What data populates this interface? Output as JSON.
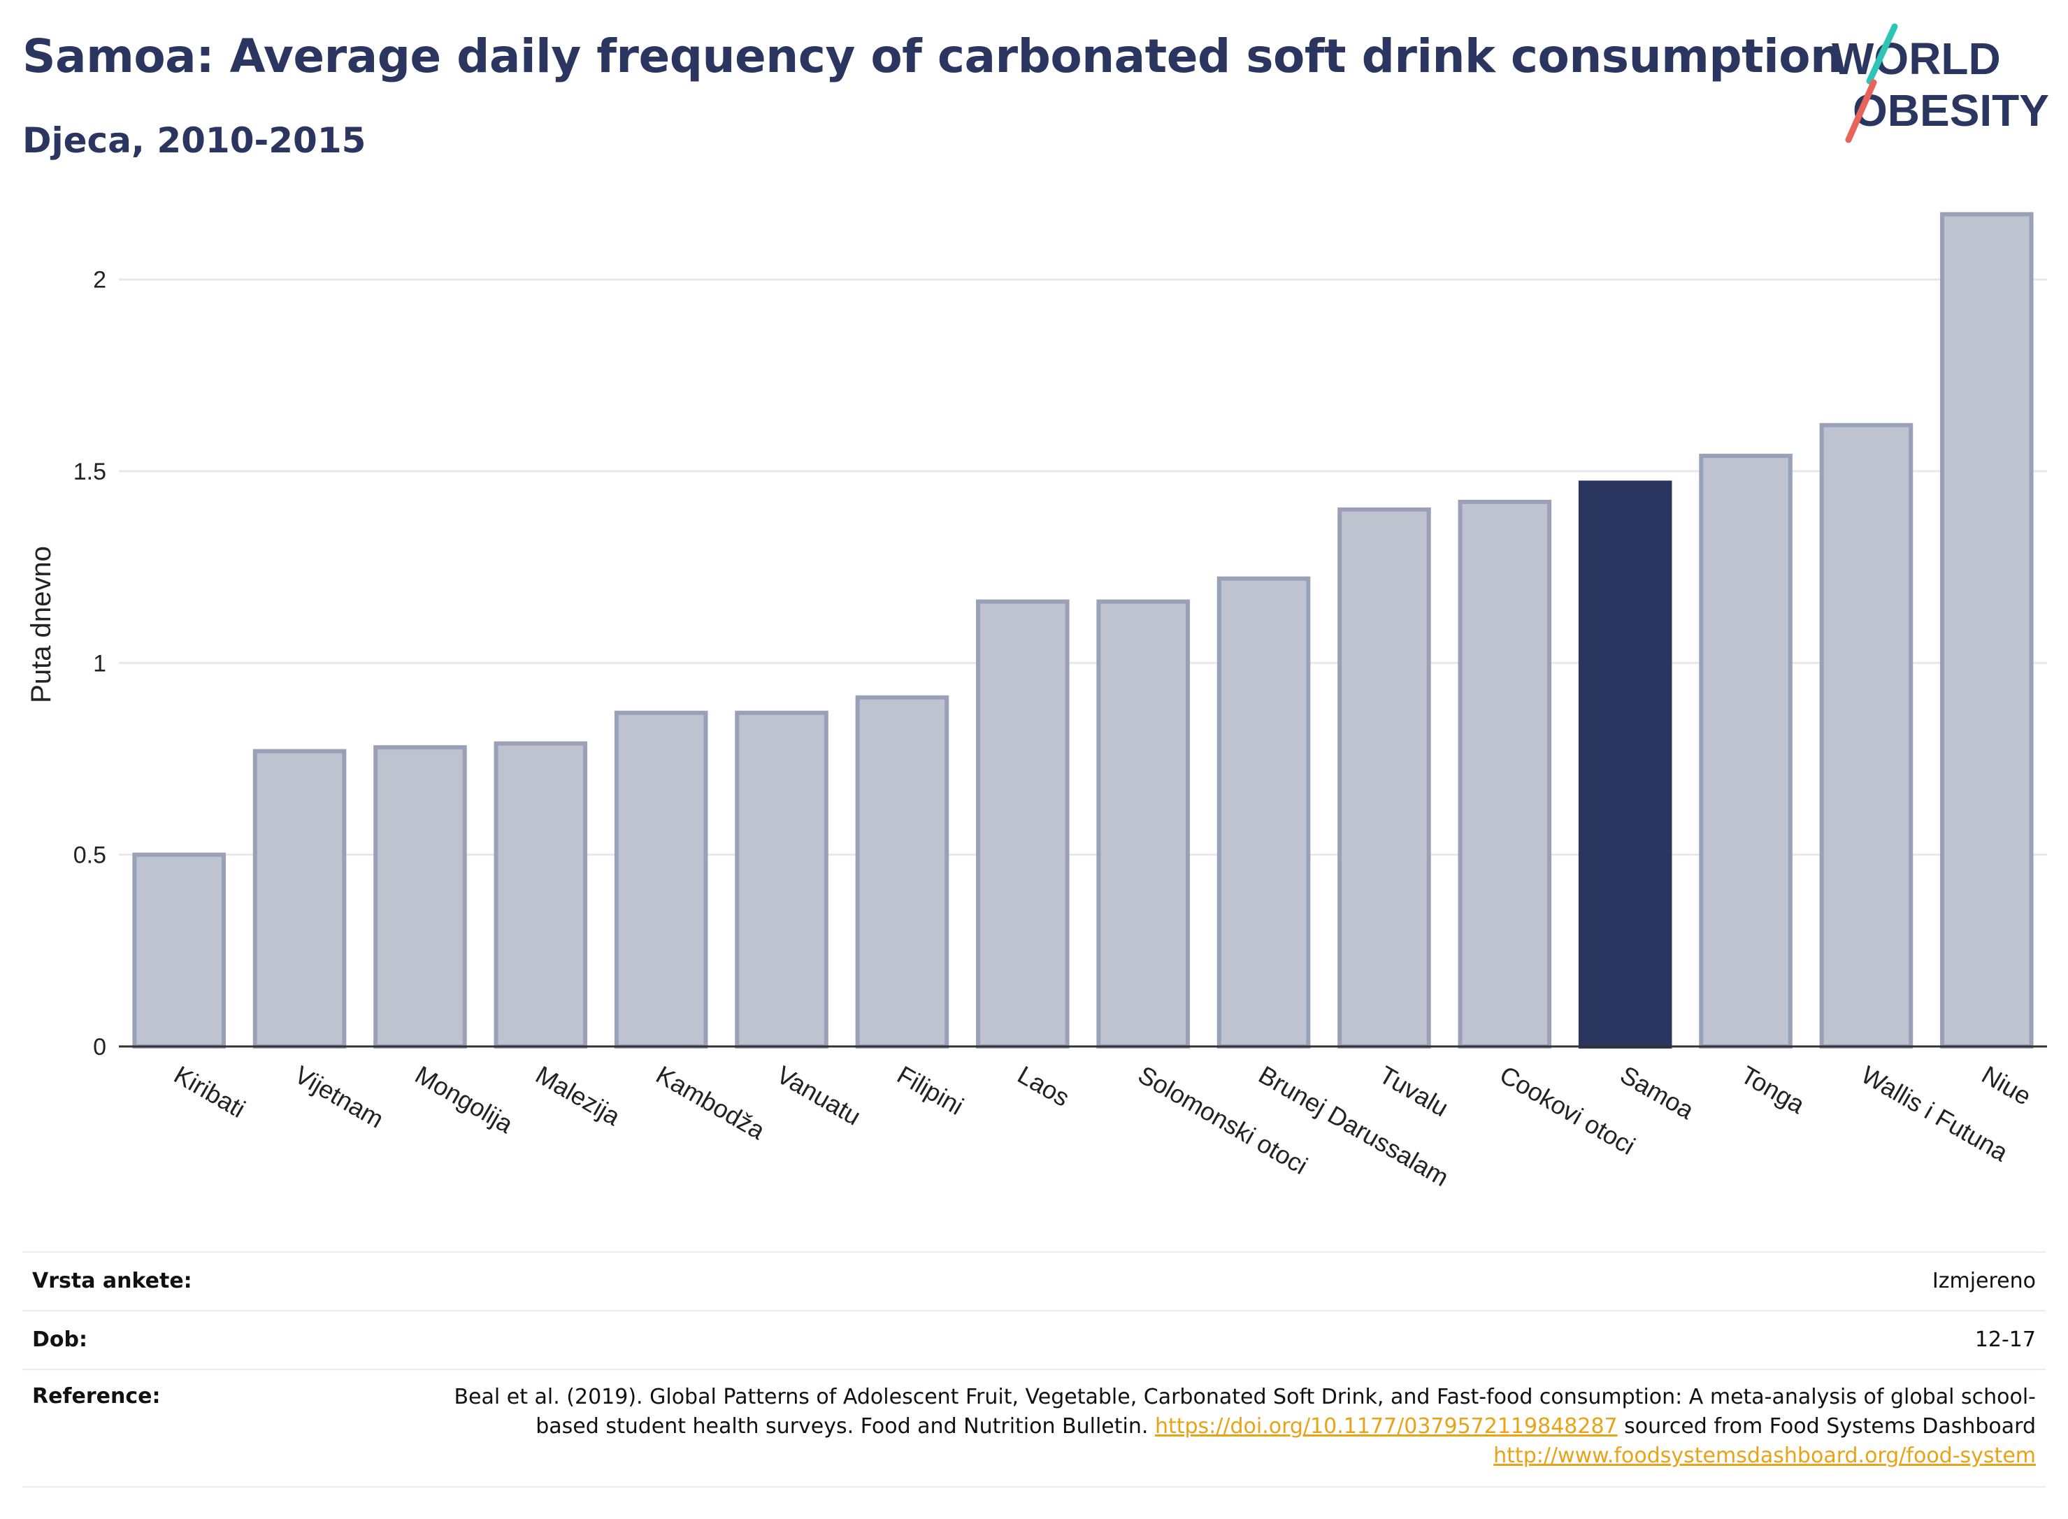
{
  "title": "Samoa: Average daily frequency of carbonated soft drink consumption",
  "subtitle": "Djeca, 2010-2015",
  "logo": {
    "line1": "WORLD",
    "line2": "OBESITY"
  },
  "colors": {
    "highlight": "#2b3660",
    "bar": "#bfc3cf",
    "bar_border": "#9aa0b8",
    "grid": "#e6e8ee",
    "link": "#e8a317",
    "accent_teal": "#2ec4b6",
    "accent_red": "#e8645a"
  },
  "chart_data": {
    "type": "bar",
    "categories": [
      "Kiribati",
      "Vijetnam",
      "Mongolija",
      "Malezija",
      "Kambodža",
      "Vanuatu",
      "Filipini",
      "Laos",
      "Solomonski otoci",
      "Brunej Darussalam",
      "Tuvalu",
      "Cookovi otoci",
      "Samoa",
      "Tonga",
      "Wallis i Futuna",
      "Niue"
    ],
    "values": [
      0.5,
      0.77,
      0.78,
      0.79,
      0.87,
      0.87,
      0.91,
      1.16,
      1.16,
      1.22,
      1.4,
      1.42,
      1.47,
      1.54,
      1.62,
      2.17
    ],
    "highlight": "Samoa",
    "ylabel": "Puta dnevno",
    "xlabel": "",
    "ylim": [
      0,
      2.2
    ],
    "yticks": [
      0,
      0.5,
      1,
      1.5,
      2
    ],
    "ytick_labels": [
      "0",
      "0.5",
      "1",
      "1.5",
      "2"
    ],
    "grid": true
  },
  "meta": {
    "survey_label": "Vrsta ankete:",
    "survey_value": "Izmjereno",
    "age_label": "Dob:",
    "age_value": "12-17",
    "ref_label": "Reference:",
    "ref_text1": "Beal et al. (2019). Global Patterns of Adolescent Fruit, Vegetable, Carbonated Soft Drink, and Fast-food consumption: A meta-analysis of global school-based student health surveys. Food and Nutrition Bulletin.",
    "ref_link1": "https://doi.org/10.1177/0379572119848287",
    "ref_text2": "sourced from Food Systems Dashboard",
    "ref_link2": "http://www.foodsystemsdashboard.org/food-system"
  }
}
